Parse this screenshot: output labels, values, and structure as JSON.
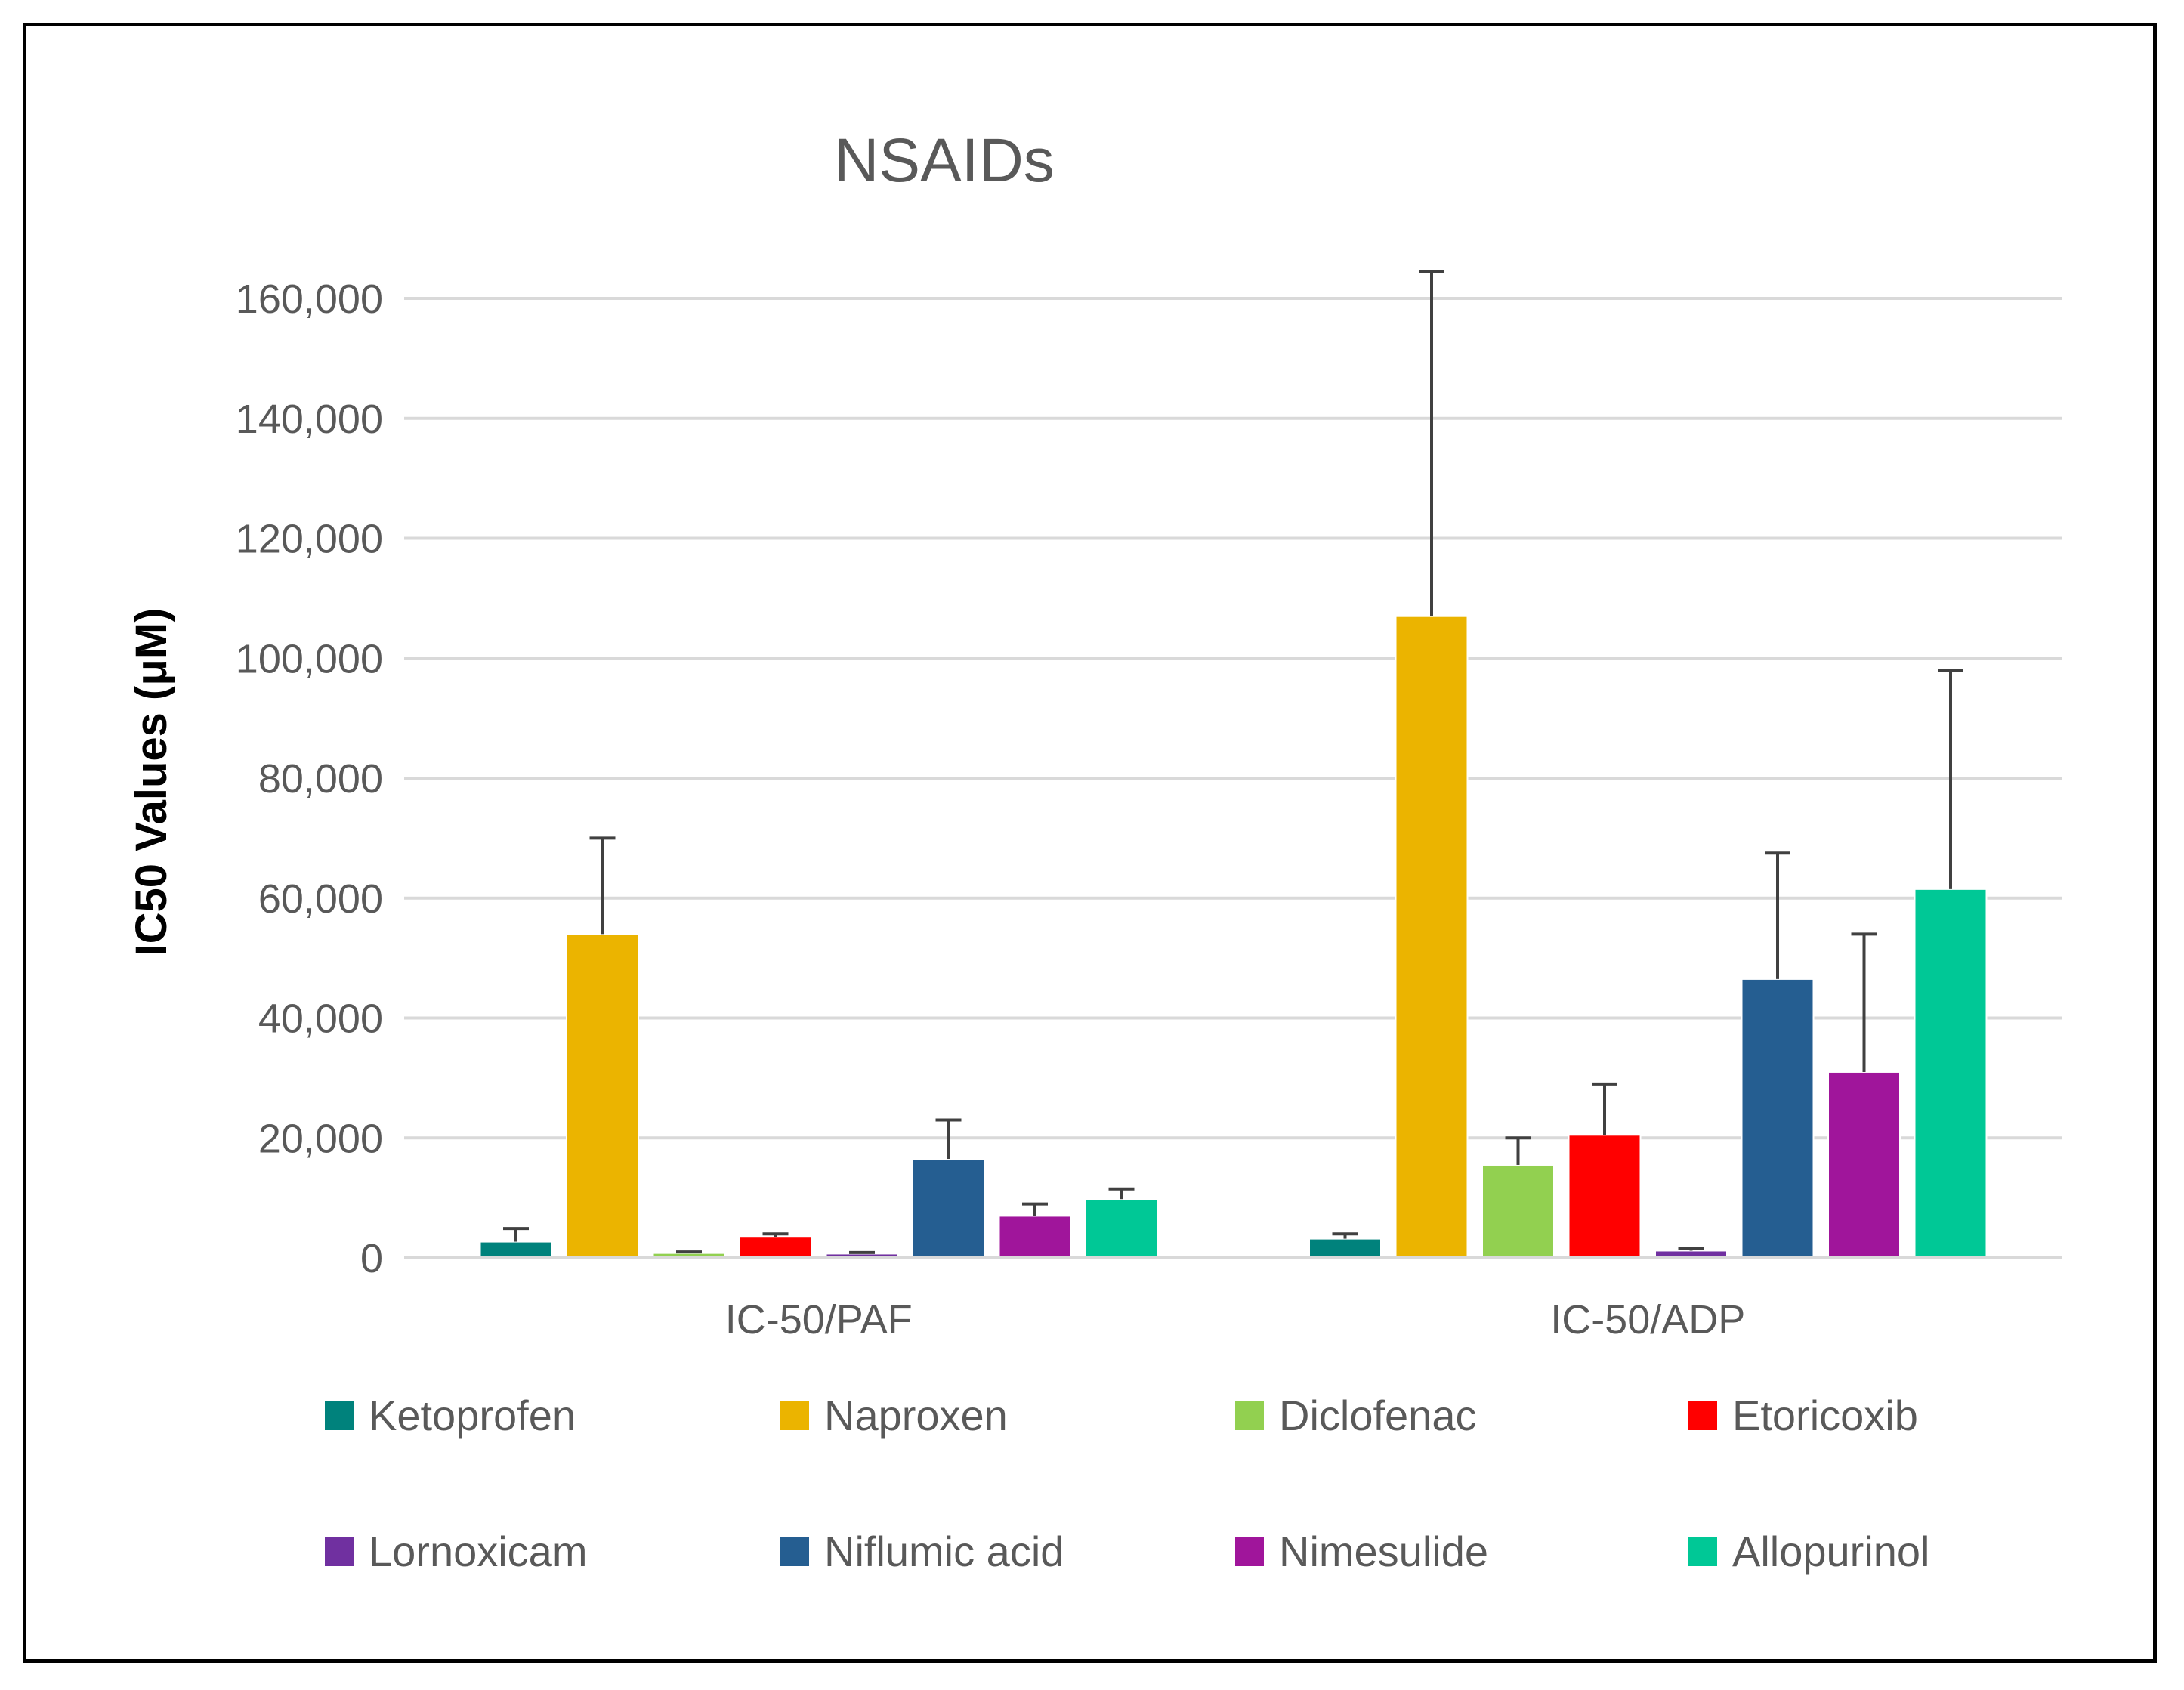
{
  "chart_data": {
    "type": "bar",
    "title": "NSAIDs",
    "xlabel": "",
    "ylabel": "IC50 Values (μM)",
    "ylim": [
      0,
      160000
    ],
    "yticks": [
      0,
      20000,
      40000,
      60000,
      80000,
      100000,
      120000,
      140000,
      160000
    ],
    "ytick_labels": [
      "0",
      "20,000",
      "40,000",
      "60,000",
      "80,000",
      "100,000",
      "120,000",
      "140,000",
      "160,000"
    ],
    "grid": true,
    "legend_position": "bottom",
    "categories": [
      "IC-50/PAF",
      "IC-50/ADP"
    ],
    "series": [
      {
        "name": "Ketoprofen",
        "color": "#00827C",
        "values": [
          2700,
          3200
        ],
        "errors": [
          2200,
          800
        ]
      },
      {
        "name": "Naproxen",
        "color": "#EBB400",
        "values": [
          54000,
          107000
        ],
        "errors": [
          16000,
          57500
        ]
      },
      {
        "name": "Diclofenac",
        "color": "#92D050",
        "values": [
          800,
          15500
        ],
        "errors": [
          200,
          4500
        ]
      },
      {
        "name": "Etoricoxib",
        "color": "#FF0000",
        "values": [
          3500,
          20500
        ],
        "errors": [
          500,
          8500
        ]
      },
      {
        "name": "Lornoxicam",
        "color": "#7030A0",
        "values": [
          700,
          1200
        ],
        "errors": [
          200,
          400
        ]
      },
      {
        "name": "Niflumic acid",
        "color": "#255E91",
        "values": [
          16500,
          46500
        ],
        "errors": [
          6500,
          21000
        ]
      },
      {
        "name": "Nimesulide",
        "color": "#A0159B",
        "values": [
          7000,
          31000
        ],
        "errors": [
          2000,
          23000
        ]
      },
      {
        "name": "Allopurinol",
        "color": "#00C896",
        "values": [
          9800,
          61500
        ],
        "errors": [
          1700,
          36500
        ]
      }
    ]
  }
}
